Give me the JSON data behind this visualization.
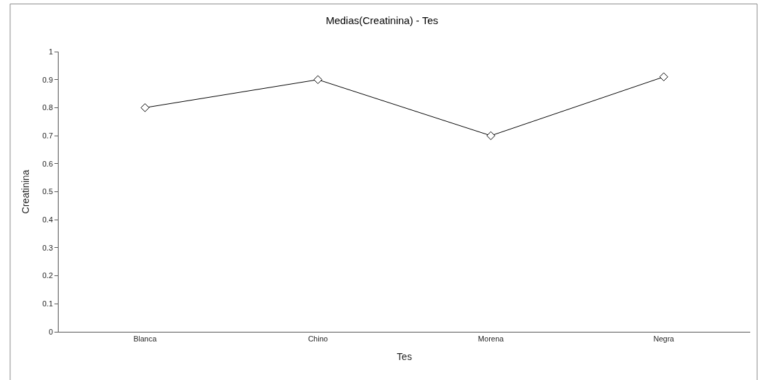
{
  "chart_data": {
    "type": "line",
    "title": "Medias(Creatinina) - Tes",
    "xlabel": "Tes",
    "ylabel": "Creatinina",
    "categories": [
      "Blanca",
      "Chino",
      "Morena",
      "Negra"
    ],
    "series": [
      {
        "color": "#000000",
        "values": [
          0.8,
          0.9,
          0.7,
          0.91
        ]
      }
    ],
    "ylim": [
      0,
      1
    ],
    "yticks": [
      0,
      0.1,
      0.2,
      0.3,
      0.4,
      0.5,
      0.6,
      0.7,
      0.8,
      0.9,
      1
    ],
    "marker": "diamond",
    "line_style": "solid"
  }
}
